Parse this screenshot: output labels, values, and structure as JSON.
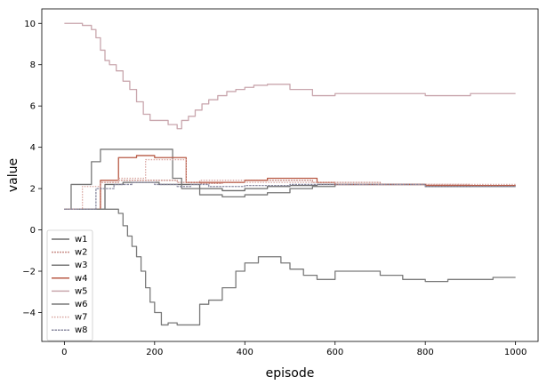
{
  "chart_data": {
    "type": "line",
    "title": "",
    "xlabel": "episode",
    "ylabel": "value",
    "xlim": [
      -50,
      1050
    ],
    "ylim": [
      -5.4,
      10.7
    ],
    "xticks": [
      0,
      200,
      400,
      600,
      800,
      1000
    ],
    "yticks": [
      -4,
      -2,
      0,
      2,
      4,
      6,
      8,
      10
    ],
    "grid": false,
    "legend_position": "lower-left",
    "series": [
      {
        "name": "w1",
        "color": "#6b6b6b",
        "dash": "",
        "step": true,
        "x": [
          0,
          50,
          90,
          130,
          170,
          210,
          250,
          300,
          350,
          400,
          450,
          500,
          560,
          600,
          700,
          800,
          900,
          1000
        ],
        "y": [
          1.0,
          1.0,
          2.2,
          2.3,
          2.3,
          2.2,
          2.2,
          2.0,
          1.9,
          2.0,
          2.1,
          2.15,
          2.2,
          2.2,
          2.2,
          2.1,
          2.15,
          2.15
        ]
      },
      {
        "name": "w2",
        "color": "#c98f88",
        "dash": "2,1",
        "step": true,
        "x": [
          0,
          60,
          80,
          120,
          200,
          250,
          300,
          350,
          400,
          450,
          500,
          550,
          600,
          700,
          800,
          900,
          1000
        ],
        "y": [
          1.0,
          1.0,
          2.3,
          2.4,
          2.4,
          2.3,
          2.25,
          2.3,
          2.4,
          2.4,
          2.4,
          2.3,
          2.3,
          2.2,
          2.2,
          2.15,
          2.15
        ]
      },
      {
        "name": "w3",
        "color": "#777777",
        "dash": "",
        "step": true,
        "x": [
          0,
          15,
          40,
          60,
          80,
          200,
          240,
          260,
          300,
          350,
          400,
          450,
          500,
          550,
          600,
          800,
          1000
        ],
        "y": [
          1.0,
          2.2,
          2.2,
          3.3,
          3.9,
          3.9,
          2.5,
          2.0,
          1.7,
          1.6,
          1.7,
          1.8,
          2.0,
          2.1,
          2.2,
          2.1,
          2.1
        ]
      },
      {
        "name": "w4",
        "color": "#b85a45",
        "dash": "",
        "step": true,
        "x": [
          0,
          40,
          80,
          100,
          120,
          160,
          200,
          250,
          270,
          300,
          400,
          450,
          500,
          560,
          600,
          800,
          1000
        ],
        "y": [
          1.0,
          1.0,
          2.4,
          2.4,
          3.5,
          3.6,
          3.5,
          3.5,
          2.3,
          2.3,
          2.4,
          2.5,
          2.5,
          2.3,
          2.2,
          2.15,
          2.15
        ]
      },
      {
        "name": "w5",
        "color": "#c9a6ad",
        "dash": "",
        "step": true,
        "x": [
          0,
          20,
          40,
          60,
          70,
          80,
          90,
          100,
          115,
          130,
          145,
          160,
          175,
          190,
          210,
          230,
          250,
          260,
          275,
          290,
          305,
          320,
          340,
          360,
          380,
          400,
          420,
          450,
          500,
          550,
          600,
          700,
          800,
          900,
          1000
        ],
        "y": [
          10.0,
          10.0,
          9.9,
          9.7,
          9.3,
          8.7,
          8.2,
          8.0,
          7.7,
          7.2,
          6.8,
          6.2,
          5.6,
          5.3,
          5.3,
          5.1,
          4.9,
          5.3,
          5.5,
          5.8,
          6.1,
          6.3,
          6.5,
          6.7,
          6.8,
          6.9,
          7.0,
          7.05,
          6.8,
          6.5,
          6.6,
          6.6,
          6.5,
          6.6,
          6.6
        ]
      },
      {
        "name": "w6",
        "color": "#7a7a7a",
        "dash": "",
        "step": true,
        "x": [
          0,
          60,
          100,
          120,
          130,
          140,
          150,
          160,
          170,
          180,
          190,
          200,
          215,
          230,
          250,
          280,
          300,
          320,
          350,
          380,
          400,
          430,
          450,
          480,
          500,
          530,
          560,
          600,
          650,
          700,
          750,
          800,
          850,
          900,
          950,
          1000
        ],
        "y": [
          1.0,
          1.0,
          1.0,
          0.8,
          0.2,
          -0.3,
          -0.8,
          -1.3,
          -2.0,
          -2.8,
          -3.5,
          -4.0,
          -4.6,
          -4.5,
          -4.6,
          -4.6,
          -3.6,
          -3.4,
          -2.8,
          -2.0,
          -1.6,
          -1.3,
          -1.3,
          -1.6,
          -1.9,
          -2.2,
          -2.4,
          -2.0,
          -2.0,
          -2.2,
          -2.4,
          -2.5,
          -2.4,
          -2.4,
          -2.3,
          -2.3
        ]
      },
      {
        "name": "w7",
        "color": "#d9a6a1",
        "dash": "1.5,1.5",
        "step": true,
        "x": [
          0,
          20,
          40,
          80,
          120,
          180,
          240,
          270,
          300,
          400,
          500,
          600,
          800,
          1000
        ],
        "y": [
          1.0,
          1.0,
          2.1,
          2.3,
          2.5,
          3.4,
          3.4,
          2.3,
          2.4,
          2.3,
          2.3,
          2.2,
          2.2,
          2.15
        ]
      },
      {
        "name": "w8",
        "color": "#8a8aa0",
        "dash": "2.5,1",
        "step": true,
        "x": [
          0,
          30,
          70,
          110,
          150,
          200,
          250,
          280,
          320,
          400,
          500,
          600,
          800,
          1000
        ],
        "y": [
          1.0,
          1.0,
          2.0,
          2.2,
          2.3,
          2.2,
          2.1,
          2.2,
          2.1,
          2.15,
          2.2,
          2.2,
          2.1,
          2.1
        ]
      }
    ]
  }
}
